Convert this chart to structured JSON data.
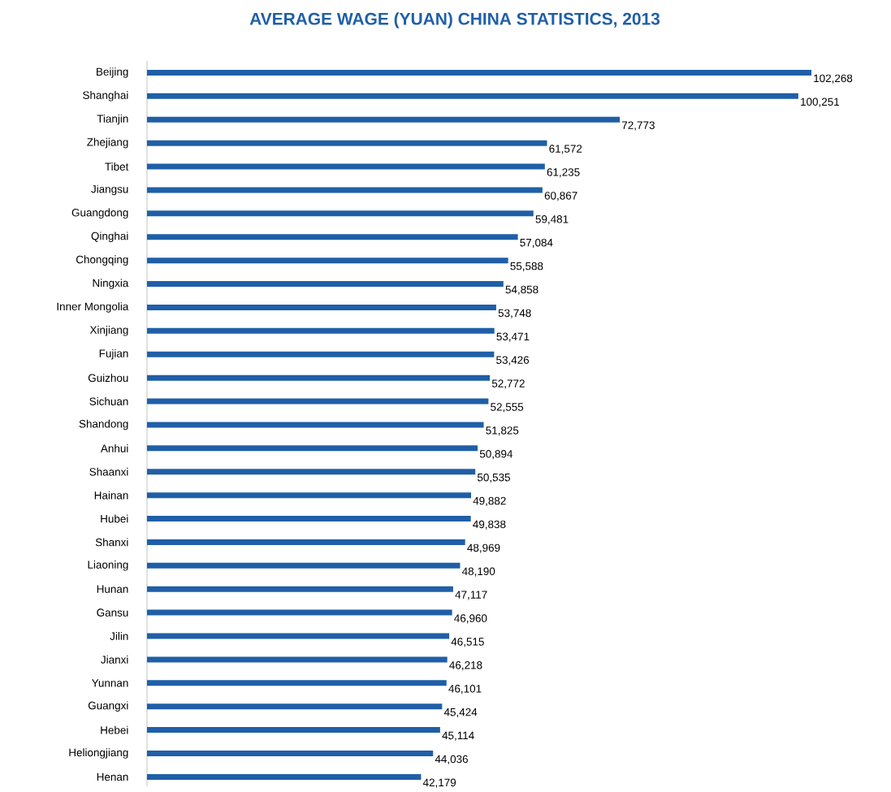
{
  "chart_data": {
    "type": "bar",
    "orientation": "horizontal",
    "title": "AVERAGE WAGE (YUAN) CHINA STATISTICS, 2013",
    "color": "#1f5fa8",
    "categories": [
      "Beijing",
      "Shanghai",
      "Tianjin",
      "Zhejiang",
      "Tibet",
      "Jiangsu",
      "Guangdong",
      "Qinghai",
      "Chongqing",
      "Ningxia",
      "Inner Mongolia",
      "Xinjiang",
      "Fujian",
      "Guizhou",
      "Sichuan",
      "Shandong",
      "Anhui",
      "Shaanxi",
      "Hainan",
      "Hubei",
      "Shanxi",
      "Liaoning",
      "Hunan",
      "Gansu",
      "Jilin",
      "Jianxi",
      "Yunnan",
      "Guangxi",
      "Hebei",
      "Heliongjiang",
      "Henan"
    ],
    "values": [
      102268,
      100251,
      72773,
      61572,
      61235,
      60867,
      59481,
      57084,
      55588,
      54858,
      53748,
      53471,
      53426,
      52772,
      52555,
      51825,
      50894,
      50535,
      49882,
      49838,
      48969,
      48190,
      47117,
      46960,
      46515,
      46218,
      46101,
      45424,
      45114,
      44036,
      42179
    ],
    "value_labels": [
      "102,268",
      "100,251",
      "72,773",
      "61,572",
      "61,235",
      "60,867",
      "59,481",
      "57,084",
      "55,588",
      "54,858",
      "53,748",
      "53,471",
      "53,426",
      "52,772",
      "52,555",
      "51,825",
      "50,894",
      "50,535",
      "49,882",
      "49,838",
      "48,969",
      "48,190",
      "47,117",
      "46,960",
      "46,515",
      "46,218",
      "46,101",
      "45,424",
      "45,114",
      "44,036",
      "42,179"
    ]
  }
}
